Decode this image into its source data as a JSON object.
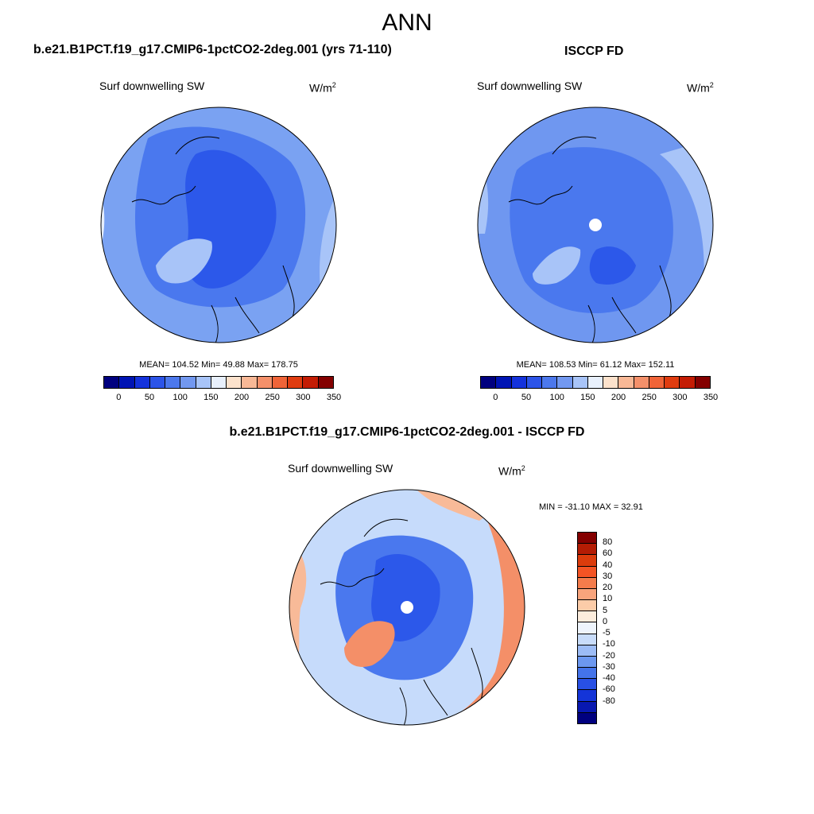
{
  "figure": {
    "title": "ANN"
  },
  "panels": [
    {
      "title": "b.e21.B1PCT.f19_g17.CMIP6-1pctCO2-2deg.001 (yrs 71-110)",
      "field": "Surf downwelling SW",
      "units_base": "W/m",
      "units_exp": "2",
      "stats": "MEAN= 104.52  Min=  49.88  Max= 178.75"
    },
    {
      "title": "ISCCP FD",
      "field": "Surf downwelling SW",
      "units_base": "W/m",
      "units_exp": "2",
      "stats": "MEAN= 108.53  Min=  61.12  Max= 152.11"
    },
    {
      "title": "b.e21.B1PCT.f19_g17.CMIP6-1pctCO2-2deg.001 - ISCCP FD",
      "field": "Surf downwelling SW",
      "units_base": "W/m",
      "units_exp": "2",
      "stats": "MIN = -31.10 MAX =  32.91"
    }
  ],
  "colorbar_abs": {
    "colors": [
      "#00007f",
      "#0014b4",
      "#1432dc",
      "#2c54e8",
      "#4c78ec",
      "#7298f0",
      "#a8c4f8",
      "#e8f0fc",
      "#fce2cc",
      "#f8b896",
      "#f4906a",
      "#f06438",
      "#e03c10",
      "#c41c04",
      "#840000"
    ],
    "labels": [
      "0",
      "50",
      "100",
      "150",
      "200",
      "250",
      "300",
      "350"
    ]
  },
  "colorbar_diff": {
    "colors": [
      "#840000",
      "#b41c04",
      "#dc3c0c",
      "#f45424",
      "#f47c4c",
      "#f8a47c",
      "#fccca8",
      "#fcecdc",
      "#eef4fc",
      "#c8dcfa",
      "#9cbcf6",
      "#6c98f0",
      "#4474ea",
      "#2850e4",
      "#1434d8",
      "#0818b0",
      "#00007f"
    ],
    "labels": [
      "80",
      "60",
      "40",
      "30",
      "20",
      "10",
      "5",
      "0",
      "-5",
      "-10",
      "-20",
      "-30",
      "-40",
      "-60",
      "-80"
    ]
  },
  "map_colors": {
    "ocean_model": "#7aa2f2",
    "ocean_obs": "#6f97f0",
    "ocean_diff": "#c6dbfb",
    "inner_dark": "#2c58ea",
    "mid_blue": "#4a78ee",
    "light_blue": "#a8c4f8",
    "very_light": "#e6eefc",
    "orange": "#f48f68",
    "orange_light": "#f8ba98",
    "coast": "#000000"
  }
}
